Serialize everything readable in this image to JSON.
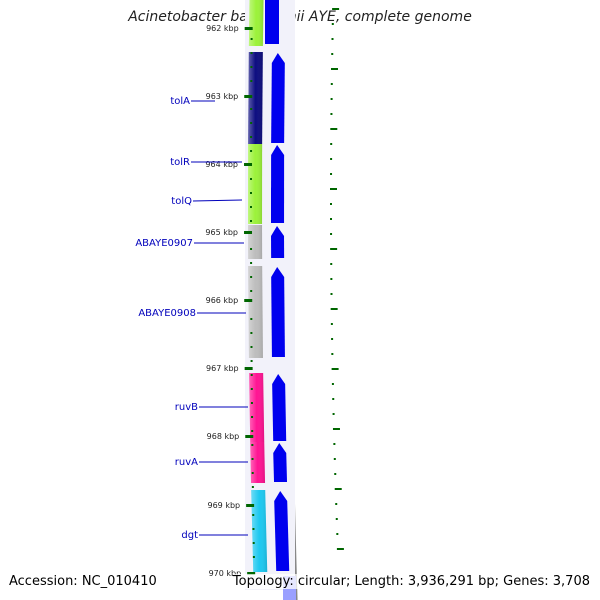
{
  "title": "Acinetobacter baumannii AYE, complete genome",
  "footer": {
    "accession": "Accession: NC_010410",
    "summary": "Topology: circular; Length: 3,936,291 bp; Genes: 3,708"
  },
  "ticks": [
    "962 kbp",
    "963 kbp",
    "964 kbp",
    "965 kbp",
    "966 kbp",
    "967 kbp",
    "968 kbp",
    "969 kbp",
    "970 kbp"
  ],
  "genes": [
    {
      "name": "tolA",
      "color": "#0d0d80"
    },
    {
      "name": "tolR",
      "color": "#9cf23a"
    },
    {
      "name": "tolQ",
      "color": "#9cf23a"
    },
    {
      "name": "ABAYE0907",
      "color": "#bdbdbd"
    },
    {
      "name": "ABAYE0908",
      "color": "#bdbdbd"
    },
    {
      "name": "ruvB",
      "color": "#ff1493"
    },
    {
      "name": "ruvA",
      "color": "#ff1493"
    },
    {
      "name": "dgt",
      "color": "#1ec8f0"
    }
  ],
  "colors": {
    "cds_strand": "#0000ee",
    "tick": "#006600",
    "gc_skew": "#006600",
    "backbone": "#888888",
    "label": "#0000bb"
  }
}
